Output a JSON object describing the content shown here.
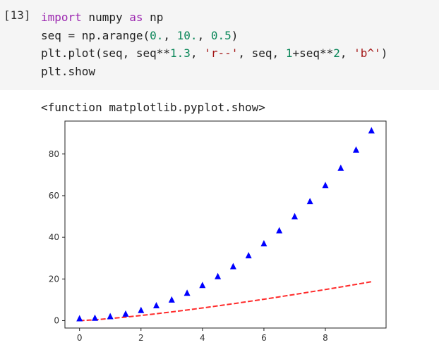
{
  "cell": {
    "prompt": "[13]",
    "lines": [
      [
        {
          "t": "import",
          "c": "kw"
        },
        {
          "t": " numpy "
        },
        {
          "t": "as",
          "c": "kw"
        },
        {
          "t": " np"
        }
      ],
      [
        {
          "t": "seq = np.arange("
        },
        {
          "t": "0.",
          "c": "num"
        },
        {
          "t": ", "
        },
        {
          "t": "10.",
          "c": "num"
        },
        {
          "t": ", "
        },
        {
          "t": "0.5",
          "c": "num"
        },
        {
          "t": ")"
        }
      ],
      [
        {
          "t": "plt.plot(seq, seq**"
        },
        {
          "t": "1.3",
          "c": "num"
        },
        {
          "t": ", "
        },
        {
          "t": "'r--'",
          "c": "str"
        },
        {
          "t": ", seq, "
        },
        {
          "t": "1",
          "c": "num"
        },
        {
          "t": "+seq**"
        },
        {
          "t": "2",
          "c": "num"
        },
        {
          "t": ", "
        },
        {
          "t": "'b^'",
          "c": "str"
        },
        {
          "t": ")"
        }
      ],
      [
        {
          "t": "plt.show"
        }
      ]
    ]
  },
  "output": {
    "text": "<function matplotlib.pyplot.show>"
  },
  "chart_data": {
    "type": "line",
    "x": [
      0.0,
      0.5,
      1.0,
      1.5,
      2.0,
      2.5,
      3.0,
      3.5,
      4.0,
      4.5,
      5.0,
      5.5,
      6.0,
      6.5,
      7.0,
      7.5,
      8.0,
      8.5,
      9.0,
      9.5
    ],
    "series": [
      {
        "style": "r--",
        "color": "#ff2a2a",
        "marker": "none",
        "dash": true,
        "values": [
          0.0,
          0.41,
          1.0,
          1.69,
          2.46,
          3.29,
          4.17,
          5.1,
          6.06,
          7.07,
          8.1,
          9.17,
          10.27,
          11.4,
          12.55,
          13.73,
          14.93,
          16.16,
          17.4,
          18.67
        ]
      },
      {
        "style": "b^",
        "color": "#0000ff",
        "marker": "triangle-up",
        "dash": false,
        "values": [
          1.0,
          1.25,
          2.0,
          3.25,
          5.0,
          7.25,
          10.0,
          13.25,
          17.0,
          21.25,
          26.0,
          31.25,
          37.0,
          43.25,
          50.0,
          57.25,
          65.0,
          73.25,
          82.0,
          91.25
        ]
      }
    ],
    "xticks": [
      "0",
      "2",
      "4",
      "6",
      "8"
    ],
    "yticks": [
      "0",
      "20",
      "40",
      "60",
      "80"
    ],
    "xlim": [
      -0.475,
      9.975
    ],
    "ylim": [
      -3.56,
      95.81
    ],
    "grid": false
  }
}
